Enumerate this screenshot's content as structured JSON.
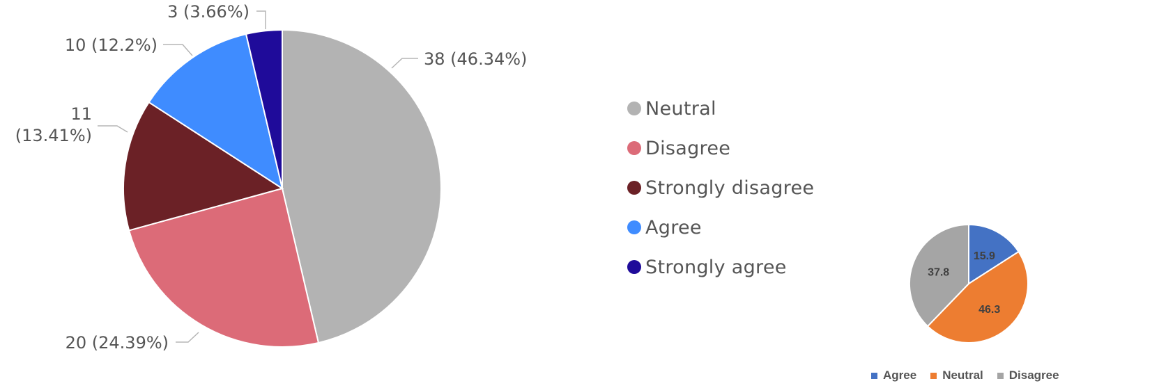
{
  "chart_data": [
    {
      "type": "pie",
      "title": "",
      "slices": [
        {
          "name": "Neutral",
          "value": 38,
          "label": "38 (46.34%)",
          "color": "#b3b3b3"
        },
        {
          "name": "Disagree",
          "value": 20,
          "label": "20 (24.39%)",
          "color": "#dc6b78"
        },
        {
          "name": "Strongly disagree",
          "value": 11,
          "label_lines": [
            "11",
            "(13.41%)"
          ],
          "color": "#6b2126"
        },
        {
          "name": "Agree",
          "value": 10,
          "label": "10 (12.2%)",
          "color": "#3f8cff"
        },
        {
          "name": "Strongly agree",
          "value": 3,
          "label": "3 (3.66%)",
          "color": "#1f0b9a"
        }
      ],
      "legend_position": "right",
      "legend": [
        "Neutral",
        "Disagree",
        "Strongly disagree",
        "Agree",
        "Strongly agree"
      ]
    },
    {
      "type": "pie",
      "title": "",
      "slices": [
        {
          "name": "Agree",
          "value": 15.9,
          "label": "15.9",
          "color": "#4472c4"
        },
        {
          "name": "Neutral",
          "value": 46.3,
          "label": "46.3",
          "color": "#ed7d31"
        },
        {
          "name": "Disagree",
          "value": 37.8,
          "label": "37.8",
          "color": "#a5a5a5"
        }
      ],
      "legend_position": "bottom",
      "legend": [
        "Agree",
        "Neutral",
        "Disagree"
      ]
    }
  ]
}
